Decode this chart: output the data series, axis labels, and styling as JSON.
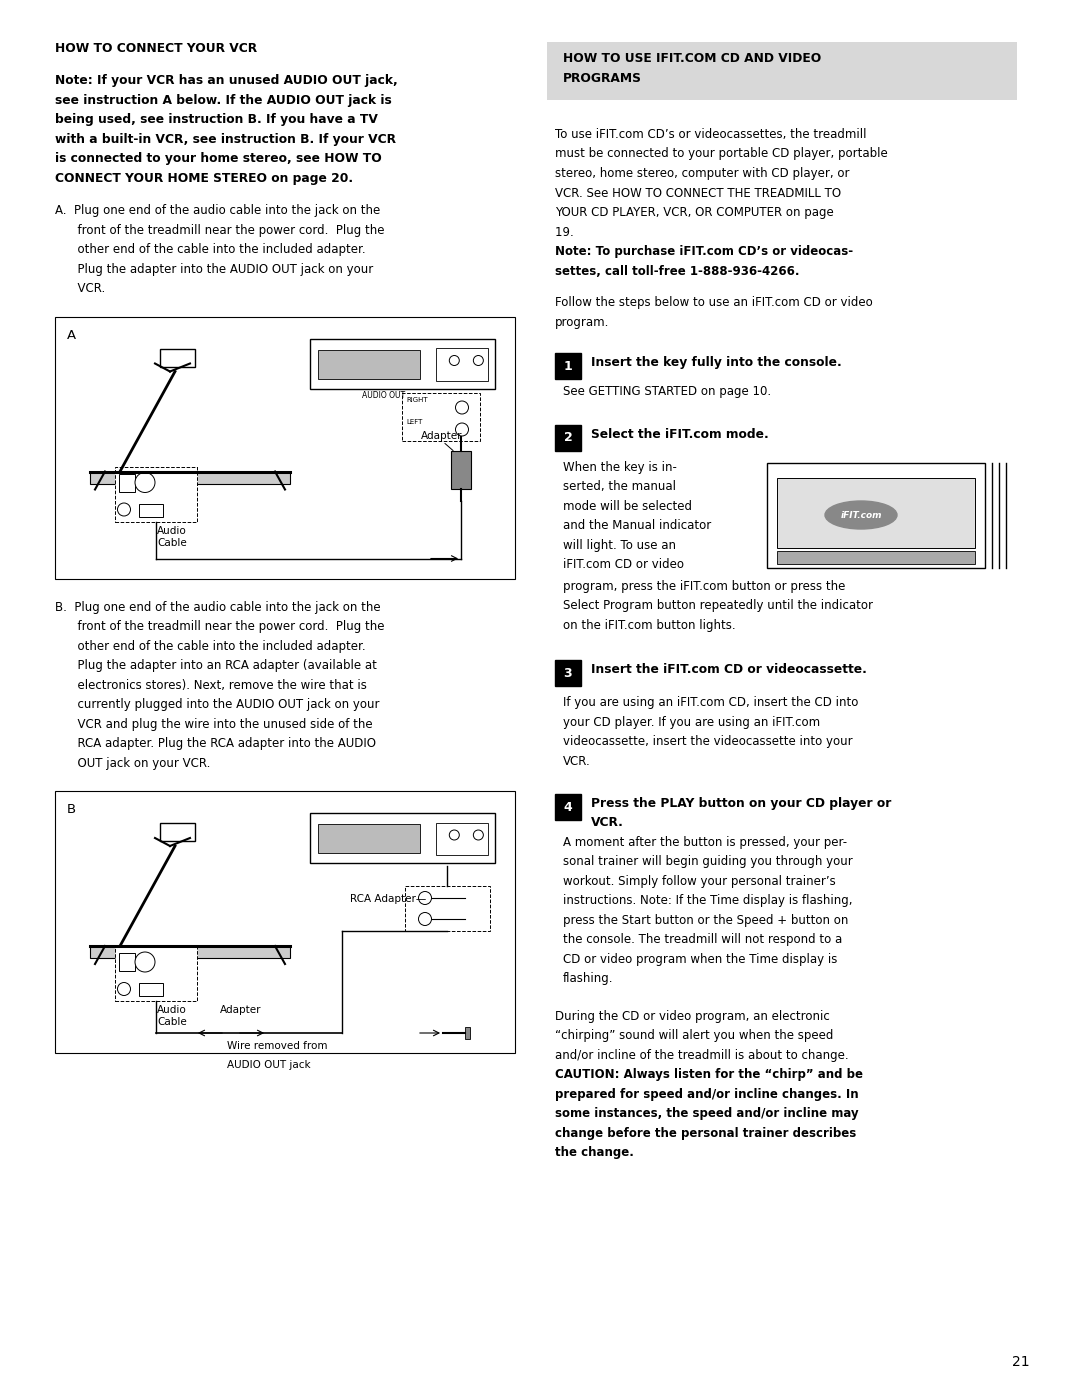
{
  "page_width": 10.8,
  "page_height": 13.97,
  "bg_color": "#ffffff",
  "left_col": {
    "heading": "HOW TO CONNECT YOUR VCR",
    "note_lines": [
      "Note: If your VCR has an unused AUDIO OUT jack,",
      "see instruction A below. If the AUDIO OUT jack is",
      "being used, see instruction B. If you have a TV",
      "with a built-in VCR, see instruction B. If your VCR",
      "is connected to your home stereo, see HOW TO",
      "CONNECT YOUR HOME STEREO on page 20."
    ],
    "para_a": [
      "A.  Plug one end of the audio cable into the jack on the",
      "      front of the treadmill near the power cord.  Plug the",
      "      other end of the cable into the included adapter.",
      "      Plug the adapter into the AUDIO OUT jack on your",
      "      VCR."
    ],
    "para_b": [
      "B.  Plug one end of the audio cable into the jack on the",
      "      front of the treadmill near the power cord.  Plug the",
      "      other end of the cable into the included adapter.",
      "      Plug the adapter into an RCA adapter (available at",
      "      electronics stores). Next, remove the wire that is",
      "      currently plugged into the AUDIO OUT jack on your",
      "      VCR and plug the wire into the unused side of the",
      "      RCA adapter. Plug the RCA adapter into the AUDIO",
      "      OUT jack on your VCR."
    ]
  },
  "right_col": {
    "box_heading_line1": "HOW TO USE IFIT.COM CD AND VIDEO",
    "box_heading_line2": "PROGRAMS",
    "intro_lines": [
      "To use iFIT.com CD’s or videocassettes, the treadmill",
      "must be connected to your portable CD player, portable",
      "stereo, home stereo, computer with CD player, or",
      "VCR. See HOW TO CONNECT THE TREADMILL TO",
      "YOUR CD PLAYER, VCR, OR COMPUTER on page",
      "19. ",
      "Note: To purchase iFIT.com CD’s or videocas-",
      "settes, call toll-free 1-888-936-4266."
    ],
    "intro_bold_from": 6,
    "follow_lines": [
      "Follow the steps below to use an iFIT.com CD or video",
      "program."
    ],
    "step1_head": "Insert the key fully into the console.",
    "step1_body": [
      "See GETTING STARTED on page 10."
    ],
    "step2_head": "Select the iFIT.com mode.",
    "step2_body_left": [
      "When the key is in-",
      "serted, the manual",
      "mode will be selected",
      "and the Manual indicator",
      "will light. To use an",
      "iFIT.com CD or video"
    ],
    "step2_body_right": [
      "program, press the iFIT.com button or press the",
      "Select Program button repeatedly until the indicator",
      "on the iFIT.com button lights."
    ],
    "step3_head": "Insert the iFIT.com CD or videocassette.",
    "step3_body": [
      "If you are using an iFIT.com CD, insert the CD into",
      "your CD player. If you are using an iFIT.com",
      "videocassette, insert the videocassette into your",
      "VCR."
    ],
    "step4_head": "Press the PLAY button on your CD player or",
    "step4_head2": "VCR.",
    "step4_body": [
      "A moment after the button is pressed, your per-",
      "sonal trainer will begin guiding you through your",
      "workout. Simply follow your personal trainer’s",
      "instructions. Note: If the Time display is flashing,",
      "press the Start button or the Speed + button on",
      "the console. The treadmill will not respond to a",
      "CD or video program when the Time display is",
      "flashing."
    ],
    "caution_normal": [
      "During the CD or video program, an electronic",
      "“chirping” sound will alert you when the speed",
      "and/or incline of the treadmill is about to change."
    ],
    "caution_bold": [
      "CAUTION: Always listen for the “chirp” and be",
      "prepared for speed and/or incline changes. In",
      "some instances, the speed and/or incline may",
      "change before the personal trainer describes",
      "the change."
    ],
    "page_num": "21"
  }
}
